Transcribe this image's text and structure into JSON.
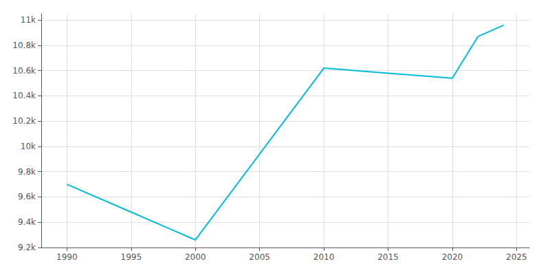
{
  "chart_data": {
    "type": "line",
    "x": [
      1990,
      1995,
      2000,
      2010,
      2015,
      2020,
      2022,
      2024
    ],
    "values": [
      9700,
      9480,
      9260,
      10620,
      10580,
      10540,
      10870,
      10960
    ],
    "color": "#00bcd4",
    "xlim": [
      1988,
      2026
    ],
    "ylim": [
      9200,
      11050
    ],
    "xticks": [
      1990,
      1995,
      2000,
      2005,
      2010,
      2015,
      2020,
      2025
    ],
    "yticks": [
      {
        "value": 9200,
        "label": "9.2k"
      },
      {
        "value": 9400,
        "label": "9.4k"
      },
      {
        "value": 9600,
        "label": "9.6k"
      },
      {
        "value": 9800,
        "label": "9.8k"
      },
      {
        "value": 10000,
        "label": "10k"
      },
      {
        "value": 10200,
        "label": "10.2k"
      },
      {
        "value": 10400,
        "label": "10.4k"
      },
      {
        "value": 10600,
        "label": "10.6k"
      },
      {
        "value": 10800,
        "label": "10.8k"
      },
      {
        "value": 11000,
        "label": "11k"
      }
    ],
    "grid": true
  }
}
